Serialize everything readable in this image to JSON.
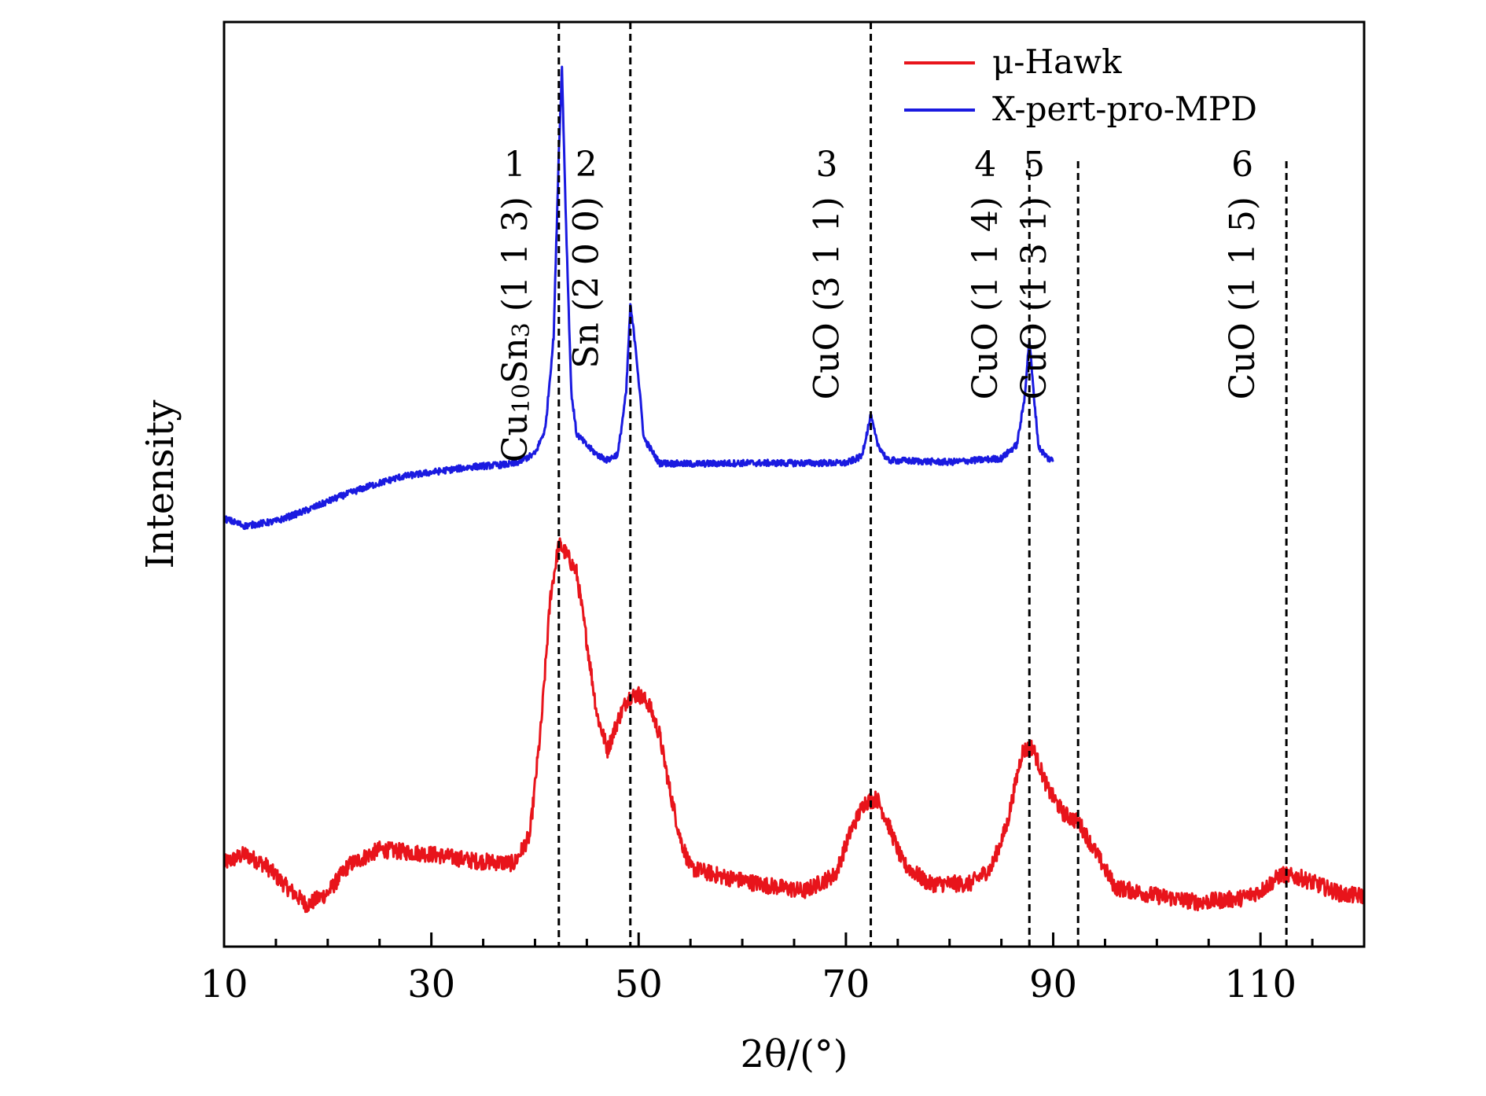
{
  "chart_data": {
    "type": "line",
    "xlabel": "2θ/(°)",
    "ylabel": "Intensity",
    "xlim": [
      10,
      120
    ],
    "ylim": [
      0,
      100
    ],
    "x_ticks": [
      10,
      30,
      50,
      70,
      90,
      110
    ],
    "x_ticks_minor": [
      15,
      20,
      25,
      35,
      40,
      45,
      55,
      60,
      65,
      75,
      80,
      85,
      95,
      100,
      105,
      115
    ],
    "grid": false,
    "legend_position": "top-right",
    "series": [
      {
        "name": "μ-Hawk",
        "color": "#e8141b",
        "x_range": [
          10,
          120
        ],
        "baseline": [
          [
            10,
            9.0
          ],
          [
            12,
            10.0
          ],
          [
            14,
            8.8
          ],
          [
            16,
            6.5
          ],
          [
            18,
            4.5
          ],
          [
            20,
            5.8
          ],
          [
            22,
            8.8
          ],
          [
            25,
            10.5
          ],
          [
            30,
            10.0
          ],
          [
            34,
            9.3
          ],
          [
            38,
            9.0
          ],
          [
            39.5,
            12
          ],
          [
            40.6,
            24
          ],
          [
            41.5,
            38
          ],
          [
            42.3,
            43.5
          ],
          [
            43,
            42.5
          ],
          [
            44,
            40.5
          ],
          [
            45,
            33
          ],
          [
            46,
            25
          ],
          [
            47,
            21.3
          ],
          [
            48,
            24.5
          ],
          [
            49,
            27
          ],
          [
            50,
            27.3
          ],
          [
            51,
            26.2
          ],
          [
            52,
            23
          ],
          [
            53,
            17
          ],
          [
            54,
            11.8
          ],
          [
            55,
            8.5
          ],
          [
            58,
            7.6
          ],
          [
            62,
            6.7
          ],
          [
            66,
            6.0
          ],
          [
            69,
            7.8
          ],
          [
            70.5,
            12.6
          ],
          [
            71.8,
            15.6
          ],
          [
            73,
            16.0
          ],
          [
            74,
            13.5
          ],
          [
            75.5,
            9
          ],
          [
            78,
            6.8
          ],
          [
            82,
            6.8
          ],
          [
            84,
            8.5
          ],
          [
            85.5,
            13
          ],
          [
            87,
            21.1
          ],
          [
            88,
            21.6
          ],
          [
            89.5,
            17
          ],
          [
            91,
            14.4
          ],
          [
            92.5,
            13.4
          ],
          [
            94,
            10.4
          ],
          [
            96,
            6.4
          ],
          [
            100,
            5.5
          ],
          [
            104,
            4.8
          ],
          [
            108,
            5.2
          ],
          [
            110,
            6.0
          ],
          [
            112,
            7.8
          ],
          [
            114,
            7.4
          ],
          [
            118,
            5.6
          ],
          [
            120,
            5.5
          ]
        ],
        "noise": 0.9
      },
      {
        "name": "X-pert-pro-MPD",
        "color": "#1a1ae0",
        "x_range": [
          10,
          90
        ],
        "baseline": [
          [
            10,
            46.3
          ],
          [
            12,
            45.5
          ],
          [
            15,
            46.0
          ],
          [
            18,
            47.2
          ],
          [
            21,
            48.6
          ],
          [
            24,
            49.8
          ],
          [
            27,
            50.8
          ],
          [
            30,
            51.3
          ],
          [
            34,
            51.9
          ],
          [
            38,
            52.2
          ],
          [
            40,
            53.3
          ],
          [
            41,
            56
          ],
          [
            41.8,
            66
          ],
          [
            42.3,
            86
          ],
          [
            42.6,
            95.0
          ],
          [
            43,
            78
          ],
          [
            43.5,
            60
          ],
          [
            44,
            55.5
          ],
          [
            45,
            54.2
          ],
          [
            46,
            53.2
          ],
          [
            47,
            52.6
          ],
          [
            48,
            53.3
          ],
          [
            48.8,
            60
          ],
          [
            49.2,
            69.3
          ],
          [
            49.7,
            65
          ],
          [
            50.5,
            55
          ],
          [
            52,
            52.3
          ],
          [
            55,
            52.2
          ],
          [
            60,
            52.3
          ],
          [
            65,
            52.3
          ],
          [
            70,
            52.3
          ],
          [
            71.5,
            53
          ],
          [
            72.4,
            57.4
          ],
          [
            73,
            54.5
          ],
          [
            74,
            52.6
          ],
          [
            80,
            52.4
          ],
          [
            85,
            52.8
          ],
          [
            86.5,
            54.3
          ],
          [
            87.2,
            59
          ],
          [
            87.7,
            65.7
          ],
          [
            88.1,
            60
          ],
          [
            88.6,
            54
          ],
          [
            89.5,
            52.8
          ],
          [
            90,
            52.6
          ]
        ],
        "noise": 0.35
      }
    ],
    "reference_lines": [
      {
        "id": "1",
        "x": 42.3,
        "label_prefix": "Cu",
        "label_sub1": "10",
        "label_mid": "Sn",
        "label_sub2": "3",
        "label_hkl": " (1 1 3)"
      },
      {
        "id": "2",
        "x": 49.2,
        "label_prefix": "Sn",
        "label_hkl": " (2 0 0)"
      },
      {
        "id": "3",
        "x": 72.4,
        "label_prefix": "CuO",
        "label_hkl": " (3 1 1)"
      },
      {
        "id": "4",
        "x": 87.7,
        "label_prefix": "CuO",
        "label_hkl": " (1 1 4)"
      },
      {
        "id": "5",
        "x": 92.4,
        "label_prefix": "CuO",
        "label_hkl": " (1 3 1)"
      },
      {
        "id": "6",
        "x": 112.5,
        "label_prefix": "CuO",
        "label_hkl": " (1 1 5)"
      }
    ]
  }
}
